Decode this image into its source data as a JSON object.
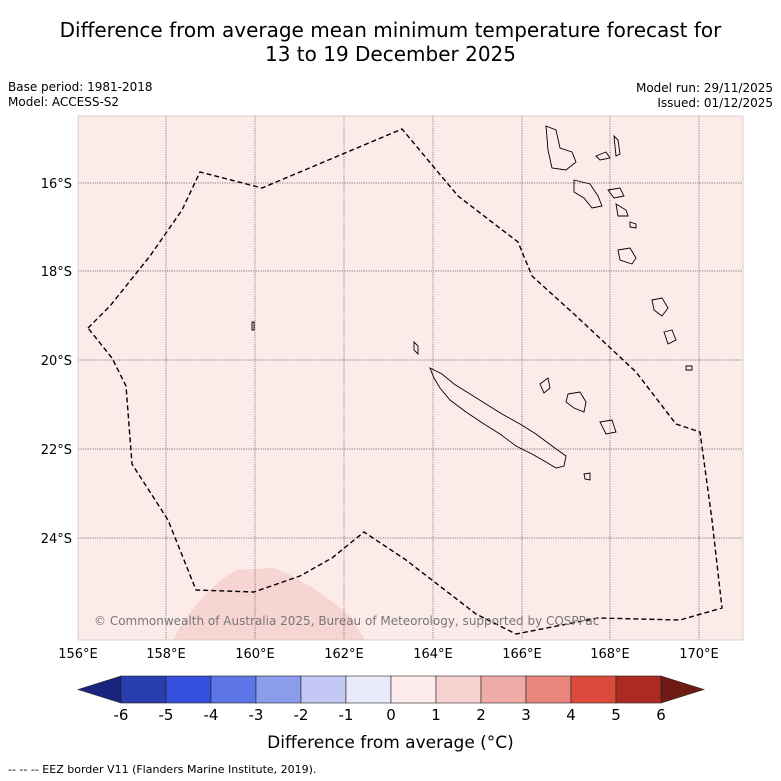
{
  "title_line1": "Difference from average mean minimum temperature forecast for",
  "title_line2": "13 to 19 December 2025",
  "base_period": "Base period: 1981-2018",
  "model": "Model: ACCESS-S2",
  "model_run": "Model run: 29/11/2025",
  "issued": "Issued: 01/12/2025",
  "lat_labels": [
    "16°S",
    "18°S",
    "20°S",
    "22°S",
    "24°S"
  ],
  "lon_labels": [
    "156°E",
    "158°E",
    "160°E",
    "162°E",
    "164°E",
    "166°E",
    "168°E",
    "170°E"
  ],
  "copyright": "© Commonwealth of Australia 2025, Bureau of Meteorology, supported by COSPPac",
  "colorbar": {
    "label": "Difference from average (°C)",
    "ticks": [
      "-6",
      "-5",
      "-4",
      "-3",
      "-2",
      "-1",
      "0",
      "1",
      "2",
      "3",
      "4",
      "5",
      "6"
    ],
    "colors": [
      "#1a237e",
      "#283db0",
      "#3550dc",
      "#5c76e8",
      "#8c9cec",
      "#c3c8f5",
      "#e9ebfb",
      "#fdeceb",
      "#f6d3d0",
      "#efaba5",
      "#e8857c",
      "#dc4a3c",
      "#ad2a22",
      "#6e1b14"
    ]
  },
  "footnote": "-- -- -- EEZ border V11 (Flanders Marine Institute, 2019).",
  "map_fill": "#fcebe9",
  "anomaly_fill": "#f6d3d0"
}
